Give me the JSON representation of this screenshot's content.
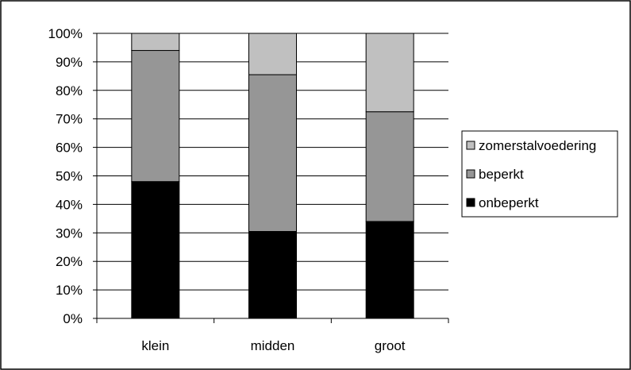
{
  "chart_data": {
    "type": "bar",
    "stacked": true,
    "percent": true,
    "categories": [
      "klein",
      "midden",
      "groot"
    ],
    "series": [
      {
        "name": "onbeperkt",
        "values": [
          48,
          30.5,
          34
        ],
        "color": "#000000"
      },
      {
        "name": "beperkt",
        "values": [
          46,
          55,
          38.5
        ],
        "color": "#969696"
      },
      {
        "name": "zomerstalvoedering",
        "values": [
          6,
          14.5,
          27.5
        ],
        "color": "#c0c0c0"
      }
    ],
    "ylim": [
      0,
      100
    ],
    "yticks": [
      "0%",
      "10%",
      "20%",
      "30%",
      "40%",
      "50%",
      "60%",
      "70%",
      "80%",
      "90%",
      "100%"
    ],
    "grid": true,
    "legend_position": "right",
    "legend_order": [
      "zomerstalvoedering",
      "beperkt",
      "onbeperkt"
    ]
  }
}
